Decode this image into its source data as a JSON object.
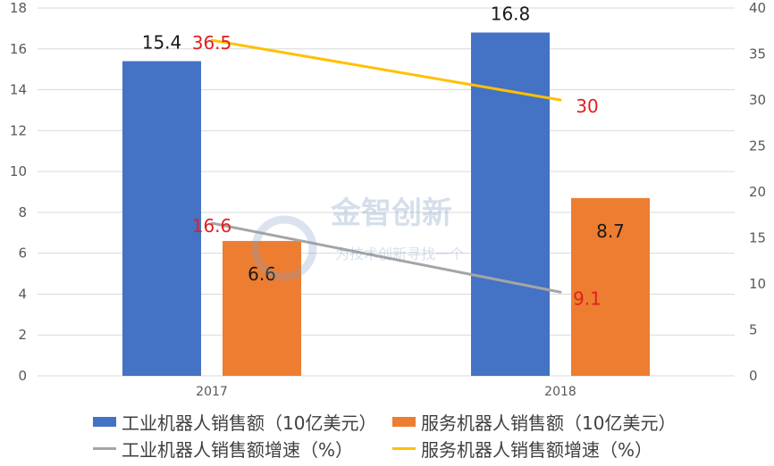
{
  "chart_data": {
    "type": "bar+line",
    "categories": [
      "2017",
      "2018"
    ],
    "y_left": {
      "min": 0,
      "max": 18,
      "ticks": [
        "0",
        "2",
        "4",
        "6",
        "8",
        "10",
        "12",
        "14",
        "16",
        "18"
      ]
    },
    "y_right": {
      "min": 0,
      "max": 40,
      "ticks": [
        "0",
        "5",
        "10",
        "15",
        "20",
        "25",
        "30",
        "35",
        "40"
      ]
    },
    "grid": true,
    "legend_position": "bottom",
    "bar_series": [
      {
        "name": "工业机器人销售额（10亿美元）",
        "values": [
          15.4,
          16.8
        ],
        "labels": [
          "15.4",
          "16.8"
        ],
        "color": "#4472C4"
      },
      {
        "name": "服务机器人销售额（10亿美元）",
        "values": [
          6.6,
          8.7
        ],
        "labels": [
          "6.6",
          "8.7"
        ],
        "color": "#ED7D31"
      }
    ],
    "line_series": [
      {
        "name": "工业机器人销售额增速（%）",
        "values": [
          16.6,
          9.1
        ],
        "labels": [
          "16.6",
          "9.1"
        ],
        "color": "#A5A5A5",
        "label_color": "#E02020"
      },
      {
        "name": "服务机器人销售额增速（%）",
        "values": [
          36.5,
          30
        ],
        "labels": [
          "36.5",
          "30"
        ],
        "color": "#FFC000",
        "label_color": "#E02020"
      }
    ]
  },
  "watermark": {
    "line1": "金智创新",
    "line2": "为技术创新寻找一个"
  }
}
